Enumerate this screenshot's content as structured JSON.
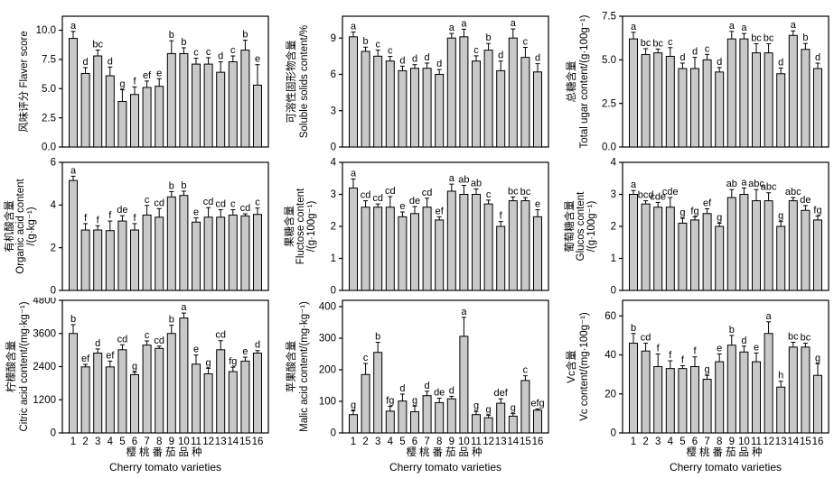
{
  "figure": {
    "xlabel_cn": "樱桃番茄品种",
    "xlabel_en": "Cherry tomato varieties",
    "categories": [
      "1",
      "2",
      "3",
      "4",
      "5",
      "6",
      "7",
      "8",
      "9",
      "10",
      "11",
      "12",
      "13",
      "14",
      "15",
      "16"
    ],
    "bar_fill": "#c9c9c9",
    "bar_stroke": "#000000",
    "text_color": "#000000",
    "background": "#ffffff"
  },
  "chart_data": [
    {
      "type": "bar",
      "id": "flavor-score",
      "ylabel_lines": [
        "风味评分 Flaver score"
      ],
      "yticks": [
        0,
        2.5,
        5,
        7.5,
        10
      ],
      "ytick_labels": [
        "0.0",
        "2.5",
        "5.0",
        "7.5",
        "10.0"
      ],
      "ylim": [
        0,
        11.2
      ],
      "values": [
        9.3,
        6.3,
        7.8,
        6.1,
        3.9,
        4.5,
        5.1,
        5.2,
        8.0,
        8.0,
        7.1,
        7.1,
        6.4,
        7.3,
        8.3,
        5.3
      ],
      "errors": [
        0.6,
        0.5,
        0.5,
        0.75,
        1.0,
        0.65,
        0.55,
        0.65,
        1.1,
        0.5,
        0.5,
        0.55,
        0.9,
        0.5,
        0.85,
        1.75
      ],
      "sig_letters": [
        "a",
        "d",
        "bc",
        "d",
        "g",
        "f",
        "ef",
        "e",
        "b",
        "b",
        "c",
        "c",
        "d",
        "c",
        "b",
        "e"
      ],
      "show_x_labels": false
    },
    {
      "type": "bar",
      "id": "soluble-solids",
      "ylabel_lines": [
        "可溶性固形物含量",
        "Soluble solids content/%"
      ],
      "yticks": [
        0,
        3,
        6,
        9
      ],
      "ytick_labels": [
        "0",
        "3",
        "6",
        "9"
      ],
      "ylim": [
        0,
        10.8
      ],
      "values": [
        9.1,
        7.9,
        7.5,
        7.1,
        6.3,
        6.5,
        6.5,
        6.0,
        9.0,
        9.1,
        7.1,
        8.0,
        6.3,
        9.0,
        7.4,
        6.2
      ],
      "errors": [
        0.4,
        0.35,
        0.5,
        0.38,
        0.38,
        0.3,
        0.43,
        0.4,
        0.38,
        0.63,
        0.43,
        0.55,
        0.8,
        0.75,
        0.83,
        0.68
      ],
      "sig_letters": [
        "a",
        "b",
        "c",
        "c",
        "d",
        "d",
        "d",
        "d",
        "a",
        "a",
        "c",
        "b",
        "d",
        "a",
        "c",
        "d"
      ],
      "show_x_labels": false
    },
    {
      "type": "bar",
      "id": "total-sugar",
      "ylabel_lines": [
        "总糖含量",
        "Total ugar content/(g·100g⁻¹)"
      ],
      "yticks": [
        0,
        2.5,
        5,
        7.5
      ],
      "ytick_labels": [
        "0.0",
        "2.5",
        "5.0",
        "7.5"
      ],
      "ylim": [
        0,
        7.5
      ],
      "values": [
        6.2,
        5.3,
        5.4,
        5.2,
        4.5,
        4.5,
        5.0,
        4.3,
        6.2,
        6.2,
        5.4,
        5.4,
        4.2,
        6.4,
        5.6,
        4.5
      ],
      "errors": [
        0.38,
        0.34,
        0.22,
        0.5,
        0.31,
        0.64,
        0.31,
        0.26,
        0.43,
        0.31,
        0.52,
        0.52,
        0.33,
        0.26,
        0.34,
        0.31
      ],
      "sig_letters": [
        "a",
        "bc",
        "bc",
        "c",
        "d",
        "d",
        "c",
        "d",
        "a",
        "a",
        "bc",
        "bc",
        "d",
        "a",
        "b",
        "d"
      ],
      "show_x_labels": false
    },
    {
      "type": "bar",
      "id": "organic-acid",
      "ylabel_lines": [
        "有机酸含量",
        "Organic acid content",
        "/(g·kg⁻¹)"
      ],
      "yticks": [
        0,
        2,
        4,
        6
      ],
      "ytick_labels": [
        "0",
        "2",
        "4",
        "6"
      ],
      "ylim": [
        0,
        6
      ],
      "values": [
        5.15,
        2.83,
        2.83,
        2.8,
        3.25,
        2.83,
        3.53,
        3.43,
        4.38,
        4.45,
        3.2,
        3.43,
        3.43,
        3.53,
        3.49,
        3.56
      ],
      "errors": [
        0.2,
        0.3,
        0.2,
        0.45,
        0.25,
        0.3,
        0.45,
        0.4,
        0.25,
        0.2,
        0.2,
        0.45,
        0.35,
        0.25,
        0.1,
        0.3
      ],
      "sig_letters": [
        "a",
        "f",
        "f",
        "f",
        "de",
        "f",
        "c",
        "cd",
        "b",
        "b",
        "e",
        "cd",
        "cd",
        "c",
        "cd",
        "c"
      ],
      "show_x_labels": false
    },
    {
      "type": "bar",
      "id": "fructose",
      "ylabel_lines": [
        "果糖含量",
        "Fluctose content",
        "/(g·100g⁻¹)"
      ],
      "yticks": [
        0,
        1,
        2,
        3,
        4
      ],
      "ytick_labels": [
        "0",
        "1",
        "2",
        "3",
        "4"
      ],
      "ylim": [
        0,
        4
      ],
      "values": [
        3.2,
        2.6,
        2.6,
        2.6,
        2.3,
        2.4,
        2.6,
        2.2,
        3.1,
        3.0,
        3.0,
        2.7,
        2.0,
        2.8,
        2.8,
        2.3
      ],
      "errors": [
        0.28,
        0.2,
        0.1,
        0.33,
        0.15,
        0.22,
        0.28,
        0.1,
        0.22,
        0.28,
        0.17,
        0.12,
        0.15,
        0.12,
        0.1,
        0.22
      ],
      "sig_letters": [
        "a",
        "cd",
        "cd",
        "cd",
        "e",
        "de",
        "cd",
        "ef",
        "a",
        "ab",
        "ab",
        "c",
        "f",
        "bc",
        "bc",
        "e"
      ],
      "show_x_labels": false
    },
    {
      "type": "bar",
      "id": "glucose",
      "ylabel_lines": [
        "葡萄糖含量",
        "Glucos content",
        "/(g·100g⁻¹)"
      ],
      "yticks": [
        0,
        1,
        2,
        3,
        4
      ],
      "ytick_labels": [
        "0",
        "1",
        "2",
        "3",
        "4"
      ],
      "ylim": [
        0,
        4
      ],
      "values": [
        3.0,
        2.7,
        2.6,
        2.6,
        2.1,
        2.2,
        2.4,
        2.0,
        2.9,
        3.0,
        2.8,
        2.8,
        2.0,
        2.8,
        2.5,
        2.2
      ],
      "errors": [
        0.12,
        0.1,
        0.15,
        0.3,
        0.15,
        0.1,
        0.15,
        0.1,
        0.25,
        0.2,
        0.35,
        0.25,
        0.15,
        0.1,
        0.15,
        0.12
      ],
      "sig_letters": [
        "a",
        "bcd",
        "cde",
        "cde",
        "g",
        "fg",
        "ef",
        "g",
        "ab",
        "a",
        "abc",
        "abc",
        "g",
        "abc",
        "de",
        "fg"
      ],
      "show_x_labels": false
    },
    {
      "type": "bar",
      "id": "citric-acid",
      "ylabel_lines": [
        "柠檬酸含量",
        "Citric acid content/(mg·kg⁻¹)"
      ],
      "yticks": [
        0,
        1200,
        2400,
        3600,
        4800
      ],
      "ytick_labels": [
        "0",
        "1200",
        "2400",
        "3600",
        "4800"
      ],
      "ylim": [
        0,
        4800
      ],
      "values": [
        3600,
        2390,
        2890,
        2390,
        3010,
        2110,
        3180,
        3060,
        3600,
        4160,
        2490,
        2140,
        3010,
        2220,
        2600,
        2890
      ],
      "errors": [
        320,
        90,
        150,
        210,
        180,
        90,
        150,
        80,
        300,
        180,
        330,
        200,
        330,
        160,
        140,
        90
      ],
      "sig_letters": [
        "b",
        "ef",
        "d",
        "ef",
        "cd",
        "g",
        "c",
        "cd",
        "b",
        "a",
        "e",
        "g",
        "cd",
        "fg",
        "e",
        "d"
      ],
      "show_x_labels": true
    },
    {
      "type": "bar",
      "id": "malic-acid",
      "ylabel_lines": [
        "苹果酸含量",
        "Malic acid content/(mg·kg⁻¹)"
      ],
      "yticks": [
        0,
        100,
        200,
        300,
        400
      ],
      "ytick_labels": [
        "0",
        "100",
        "200",
        "300",
        "400"
      ],
      "ylim": [
        0,
        420
      ],
      "values": [
        58,
        185,
        255,
        69,
        101,
        67,
        118,
        96,
        108,
        306,
        58,
        48,
        94,
        53,
        166,
        72
      ],
      "errors": [
        12,
        35,
        32,
        15,
        22,
        18,
        14,
        14,
        8,
        60,
        10,
        8,
        14,
        8,
        15,
        4
      ],
      "sig_letters": [
        "g",
        "c",
        "b",
        "fg",
        "d",
        "g",
        "d",
        "de",
        "d",
        "a",
        "g",
        "g",
        "def",
        "g",
        "c",
        "efg"
      ],
      "show_x_labels": true
    },
    {
      "type": "bar",
      "id": "vc-content",
      "ylabel_lines": [
        "Vc含量",
        "Vc content/(mg·100g⁻¹)"
      ],
      "yticks": [
        0,
        20,
        40,
        60
      ],
      "ytick_labels": [
        "0",
        "20",
        "40",
        "60"
      ],
      "ylim": [
        0,
        68
      ],
      "values": [
        46,
        42,
        34,
        33,
        33,
        34,
        27.5,
        36.5,
        45,
        41.5,
        36.5,
        51,
        23.5,
        44,
        44,
        29.5
      ],
      "errors": [
        5,
        4,
        6.5,
        4,
        1.5,
        5,
        2,
        4,
        5,
        3,
        4.5,
        6,
        3,
        2.5,
        2,
        6
      ],
      "sig_letters": [
        "b",
        "cd",
        "f",
        "f",
        "f",
        "f",
        "g",
        "e",
        "b",
        "d",
        "e",
        "a",
        "h",
        "bc",
        "bc",
        "g"
      ],
      "show_x_labels": true
    }
  ]
}
